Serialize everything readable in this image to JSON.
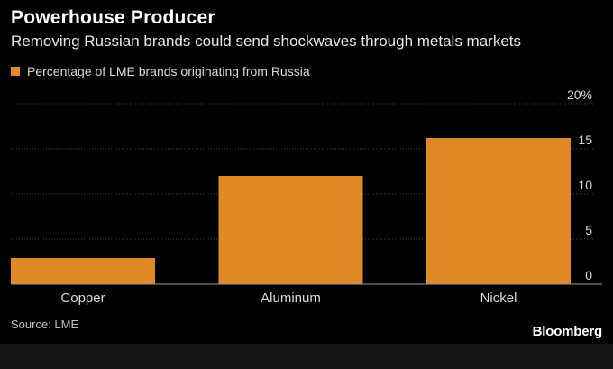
{
  "header": {
    "title": "Powerhouse Producer",
    "subtitle": "Removing Russian brands could send shockwaves through metals markets"
  },
  "footer": {
    "source": "Source: LME",
    "brand": "Bloomberg"
  },
  "colors": {
    "background": "#000000",
    "bar": "#e08a27",
    "gridline": "#444444",
    "axis_text": "#d9d9d9"
  },
  "chart_data": {
    "type": "bar",
    "categories": [
      "Copper",
      "Aluminum",
      "Nickel"
    ],
    "series": [
      {
        "name": "Percentage of LME brands originating from Russia",
        "values": [
          2.9,
          12.0,
          16.2
        ]
      }
    ],
    "ylim": [
      0,
      20
    ],
    "yticks": [
      0,
      5,
      10,
      15,
      20
    ],
    "ytick_labels": [
      "0",
      "5",
      "10",
      "15",
      "20%"
    ],
    "y_axis_side": "right",
    "grid": true,
    "legend_position": "top-left"
  }
}
